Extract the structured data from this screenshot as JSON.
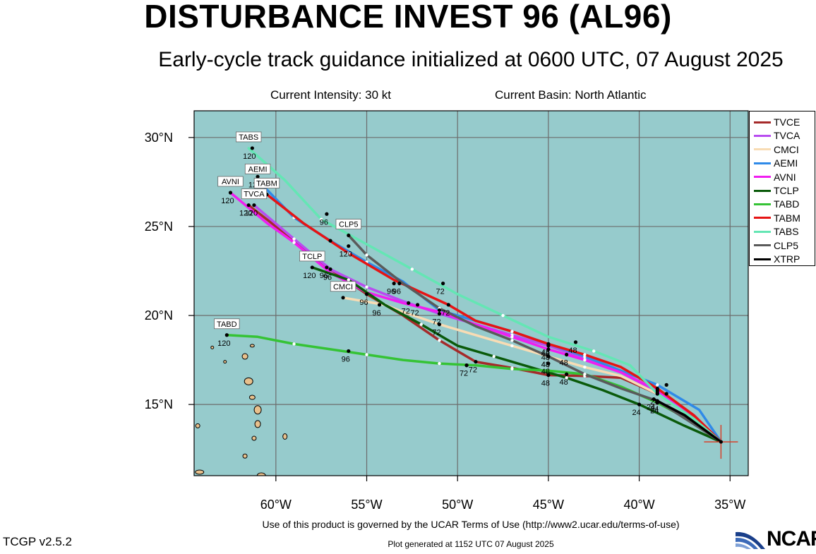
{
  "header": {
    "title": "DISTURBANCE INVEST 96 (AL96)",
    "subtitle": "Early-cycle track guidance initialized at 0600 UTC, 07 August 2025",
    "intensity": "Current Intensity: 30 kt",
    "basin": "Current Basin: North Atlantic"
  },
  "footer": {
    "terms": "Use of this product is governed by the UCAR Terms of Use (http://www2.ucar.edu/terms-of-use)",
    "version": "TCGP v2.5.2",
    "generated": "Plot generated at 1152 UTC   07 August 2025",
    "logo_text": "NCAR"
  },
  "colors": {
    "ocean": "#96cbcc",
    "land": "#e8c08c",
    "grid": "#6c6c6c"
  },
  "map": {
    "lon_range": [
      -64.5,
      -34
    ],
    "lat_range": [
      11,
      31.5
    ],
    "lon_ticks": [
      -60,
      -55,
      -50,
      -45,
      -40,
      -35
    ],
    "lat_ticks": [
      15,
      20,
      25,
      30
    ],
    "lon_labels": [
      "60°W",
      "55°W",
      "50°W",
      "45°W",
      "40°W",
      "35°W"
    ],
    "lat_labels": [
      "15°N",
      "20°N",
      "25°N",
      "30°N"
    ],
    "current_position": {
      "lon": -35.5,
      "lat": 12.9
    }
  },
  "chart_data": {
    "type": "track",
    "series": [
      {
        "name": "TVCE",
        "color": "#a52a2a",
        "end_label": "",
        "points": [
          [
            -35.5,
            12.9
          ],
          [
            -37,
            14.3
          ],
          [
            -39,
            15.6
          ],
          [
            -41,
            16.5
          ],
          [
            -43,
            16.6
          ],
          [
            -45,
            16.65
          ],
          [
            -47,
            17.05
          ],
          [
            -49,
            17.4
          ],
          [
            -51,
            18.6
          ],
          [
            -53,
            20.0
          ],
          [
            -55,
            21.2
          ],
          [
            -57,
            22.6
          ],
          [
            -59,
            24.2
          ],
          [
            -61.5,
            26.2
          ]
        ],
        "dots": [
          [
            -39,
            15.6,
            "24"
          ],
          [
            -45,
            16.65,
            "48"
          ],
          [
            -49,
            17.4,
            "72"
          ],
          [
            -55,
            21.2,
            "96"
          ],
          [
            -61.5,
            26.2,
            "120"
          ]
        ]
      },
      {
        "name": "TVCA",
        "color": "#b84cf0",
        "end_label": "TVCA",
        "points": [
          [
            -35.5,
            12.9
          ],
          [
            -37,
            14.4
          ],
          [
            -39,
            15.7
          ],
          [
            -41,
            16.8
          ],
          [
            -43,
            17.6
          ],
          [
            -45,
            18.3
          ],
          [
            -47,
            18.9
          ],
          [
            -49,
            19.5
          ],
          [
            -51,
            20.1
          ],
          [
            -53,
            20.8
          ],
          [
            -55,
            21.6
          ],
          [
            -57,
            22.6
          ],
          [
            -59,
            24.3
          ],
          [
            -61.2,
            26.2
          ]
        ],
        "dots": [
          [
            -39,
            15.7,
            ""
          ],
          [
            -45,
            18.3,
            "48"
          ],
          [
            -51,
            20.1,
            "72"
          ],
          [
            -57,
            22.6,
            "96"
          ],
          [
            -61.2,
            26.2,
            "120"
          ]
        ]
      },
      {
        "name": "CMCI",
        "color": "#f8dcb4",
        "end_label": "CMCI",
        "points": [
          [
            -35.5,
            12.9
          ],
          [
            -37,
            14.2
          ],
          [
            -39,
            15.6
          ],
          [
            -41,
            16.6
          ],
          [
            -43,
            17.1
          ],
          [
            -45,
            17.7
          ],
          [
            -47,
            18.3
          ],
          [
            -49,
            18.9
          ],
          [
            -51,
            19.5
          ],
          [
            -53,
            20.2
          ],
          [
            -54,
            20.6
          ],
          [
            -56.3,
            21.0
          ]
        ],
        "dots": [
          [
            -39,
            15.6,
            ""
          ],
          [
            -45,
            17.7,
            "48"
          ],
          [
            -51,
            19.5,
            "72"
          ],
          [
            -56.3,
            21.0,
            ""
          ]
        ]
      },
      {
        "name": "AEMI",
        "color": "#2f8ae8",
        "end_label": "AEMI",
        "points": [
          [
            -35.5,
            12.9
          ],
          [
            -36.7,
            14.7
          ],
          [
            -39,
            16.1
          ],
          [
            -41,
            16.9
          ],
          [
            -43,
            17.7
          ],
          [
            -45,
            18.4
          ],
          [
            -47,
            19.1
          ],
          [
            -49,
            19.7
          ],
          [
            -51,
            20.3
          ],
          [
            -53,
            21.9
          ],
          [
            -55,
            23.0
          ],
          [
            -57,
            24.2
          ],
          [
            -59,
            25.5
          ],
          [
            -61,
            27.6
          ]
        ],
        "dots": [
          [
            -38.5,
            16.1,
            ""
          ],
          [
            -45,
            18.4,
            "48"
          ],
          [
            -51,
            20.3,
            ""
          ],
          [
            -57,
            24.2,
            ""
          ],
          [
            -61,
            27.8,
            "120"
          ]
        ]
      },
      {
        "name": "AVNI",
        "color": "#f01ef0",
        "end_label": "AVNI",
        "points": [
          [
            -35.5,
            12.9
          ],
          [
            -37,
            14.4
          ],
          [
            -39,
            15.8
          ],
          [
            -41,
            16.8
          ],
          [
            -43,
            17.5
          ],
          [
            -45,
            18.1
          ],
          [
            -47,
            18.8
          ],
          [
            -49,
            19.5
          ],
          [
            -51,
            20.2
          ],
          [
            -53,
            20.7
          ],
          [
            -55,
            21.3
          ],
          [
            -57,
            22.4
          ],
          [
            -59,
            24.1
          ],
          [
            -60.5,
            25.2
          ],
          [
            -62.5,
            26.9
          ]
        ],
        "dots": [
          [
            -39,
            15.8,
            ""
          ],
          [
            -45,
            18.1,
            "48"
          ],
          [
            -52.7,
            20.7,
            "72"
          ],
          [
            -57.2,
            22.7,
            "96"
          ],
          [
            -62.5,
            26.9,
            "120"
          ]
        ]
      },
      {
        "name": "TCLP",
        "color": "#0a5a0a",
        "end_label": "TCLP",
        "points": [
          [
            -35.5,
            12.9
          ],
          [
            -37.5,
            13.8
          ],
          [
            -40,
            15.0
          ],
          [
            -42,
            15.8
          ],
          [
            -44,
            16.5
          ],
          [
            -46,
            17.1
          ],
          [
            -48,
            17.7
          ],
          [
            -50,
            18.3
          ],
          [
            -52,
            19.5
          ],
          [
            -54,
            20.6
          ],
          [
            -56,
            22.0
          ],
          [
            -58,
            22.7
          ]
        ],
        "dots": [
          [
            -40,
            15.0,
            "24"
          ],
          [
            -45,
            17.3,
            "48"
          ],
          [
            -49.5,
            17.2,
            "72"
          ],
          [
            -54.3,
            20.6,
            "96"
          ],
          [
            -58,
            22.7,
            "120"
          ]
        ]
      },
      {
        "name": "TABD",
        "color": "#35c335",
        "end_label": "TABD",
        "points": [
          [
            -35.5,
            12.9
          ],
          [
            -37,
            14.0
          ],
          [
            -39,
            15.1
          ],
          [
            -41,
            16.0
          ],
          [
            -43,
            16.7
          ],
          [
            -45,
            16.9
          ],
          [
            -47,
            17.0
          ],
          [
            -49,
            17.2
          ],
          [
            -51,
            17.3
          ],
          [
            -53,
            17.5
          ],
          [
            -55,
            17.8
          ],
          [
            -57,
            18.1
          ],
          [
            -59,
            18.4
          ],
          [
            -61,
            18.8
          ],
          [
            -62.7,
            18.9
          ]
        ],
        "dots": [
          [
            -39,
            15.1,
            "24"
          ],
          [
            -44,
            16.7,
            "48"
          ],
          [
            -49.5,
            17.2,
            ""
          ],
          [
            -56,
            18.0,
            "96"
          ],
          [
            -62.7,
            18.9,
            "120"
          ]
        ]
      },
      {
        "name": "TABM",
        "color": "#e61414",
        "end_label": "TABM",
        "points": [
          [
            -35.5,
            12.9
          ],
          [
            -37,
            14.4
          ],
          [
            -39,
            15.9
          ],
          [
            -41,
            17.1
          ],
          [
            -43,
            17.8
          ],
          [
            -45,
            18.4
          ],
          [
            -47,
            19.1
          ],
          [
            -49,
            19.7
          ],
          [
            -50.5,
            20.6
          ],
          [
            -53.5,
            22.0
          ],
          [
            -56,
            23.5
          ],
          [
            -58.5,
            25.2
          ],
          [
            -60.5,
            26.8
          ]
        ],
        "dots": [
          [
            -39,
            15.9,
            ""
          ],
          [
            -44,
            17.8,
            "48"
          ],
          [
            -50.5,
            20.6,
            "72"
          ],
          [
            -53.5,
            21.8,
            "96"
          ],
          [
            -56,
            23.9,
            "120"
          ],
          [
            -60.5,
            26.8,
            ""
          ]
        ]
      },
      {
        "name": "TABS",
        "color": "#64e6b4",
        "end_label": "TABS",
        "points": [
          [
            -35.5,
            12.9
          ],
          [
            -37,
            14.2
          ],
          [
            -39,
            15.6
          ],
          [
            -40.5,
            17.2
          ],
          [
            -42.5,
            18.0
          ],
          [
            -45,
            18.8
          ],
          [
            -47.5,
            20.0
          ],
          [
            -50,
            21.2
          ],
          [
            -52.5,
            22.6
          ],
          [
            -55,
            24.0
          ],
          [
            -57.5,
            25.4
          ],
          [
            -59.5,
            27.6
          ],
          [
            -61.5,
            29.4
          ]
        ],
        "dots": [
          [
            -38.5,
            15.6,
            ""
          ],
          [
            -43.5,
            18.5,
            "48"
          ],
          [
            -50.8,
            21.8,
            "72"
          ],
          [
            -57.2,
            25.7,
            "96"
          ],
          [
            -61.3,
            29.4,
            "120"
          ]
        ]
      },
      {
        "name": "CLP5",
        "color": "#5a5a5a",
        "end_label": "CLP5",
        "points": [
          [
            -35.5,
            12.9
          ],
          [
            -37,
            13.9
          ],
          [
            -39,
            15.2
          ],
          [
            -41,
            15.9
          ],
          [
            -43,
            16.7
          ],
          [
            -45,
            17.7
          ],
          [
            -47,
            18.6
          ],
          [
            -49,
            19.4
          ],
          [
            -51,
            20.4
          ],
          [
            -53,
            21.8
          ],
          [
            -55,
            23.4
          ],
          [
            -56,
            24.5
          ]
        ],
        "dots": [
          [
            -39,
            15.2,
            "24"
          ],
          [
            -45,
            17.7,
            "48"
          ],
          [
            -52.2,
            20.6,
            "72"
          ],
          [
            -53.2,
            21.8,
            "96"
          ],
          [
            -56,
            24.5,
            ""
          ]
        ]
      },
      {
        "name": "XTRP",
        "color": "#000000",
        "end_label": "",
        "points": [
          [
            -35.5,
            12.9
          ],
          [
            -37.5,
            14.4
          ],
          [
            -39.2,
            15.3
          ]
        ],
        "dots": [
          [
            -39.2,
            15.3,
            "24"
          ]
        ]
      }
    ]
  }
}
